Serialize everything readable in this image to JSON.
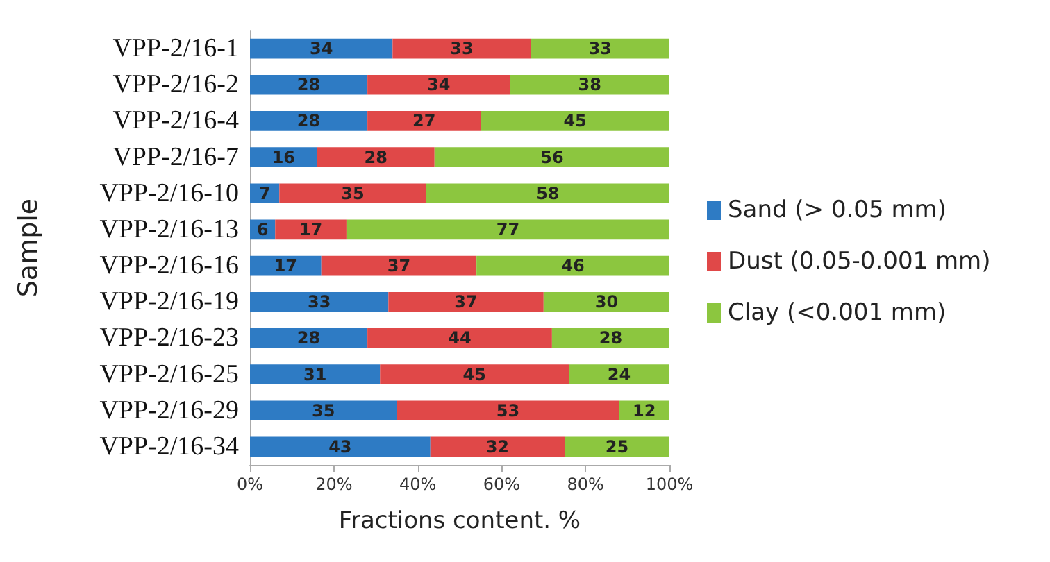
{
  "chart_data": {
    "type": "bar",
    "orientation": "horizontal",
    "stacked": true,
    "xlabel": "Fractions content. %",
    "ylabel": "Sample",
    "categories": [
      "VPP-2/16-1",
      "VPP-2/16-2",
      "VPP-2/16-4",
      "VPP-2/16-7",
      "VPP-2/16-10",
      "VPP-2/16-13",
      "VPP-2/16-16",
      "VPP-2/16-19",
      "VPP-2/16-23",
      "VPP-2/16-25",
      "VPP-2/16-29",
      "VPP-2/16-34"
    ],
    "series": [
      {
        "name": "Sand (> 0.05 mm)",
        "color": "#2e7bc4",
        "values": [
          34,
          28,
          28,
          16,
          7,
          6,
          17,
          33,
          28,
          31,
          35,
          43
        ]
      },
      {
        "name": "Dust (0.05-0.001 mm)",
        "color": "#e04848",
        "values": [
          33,
          34,
          27,
          28,
          35,
          17,
          37,
          37,
          44,
          45,
          53,
          32
        ]
      },
      {
        "name": "Clay (<0.001 mm)",
        "color": "#8cc63f",
        "values": [
          33,
          38,
          45,
          56,
          58,
          77,
          46,
          30,
          28,
          24,
          12,
          25
        ]
      }
    ],
    "xlim": [
      0,
      100
    ],
    "xticks": [
      {
        "value": 0,
        "label": "0%"
      },
      {
        "value": 20,
        "label": "20%"
      },
      {
        "value": 40,
        "label": "40%"
      },
      {
        "value": 60,
        "label": "60%"
      },
      {
        "value": 80,
        "label": "80%"
      },
      {
        "value": 100,
        "label": "100%"
      }
    ],
    "data_labels": true,
    "legend": "right",
    "grid": false
  }
}
